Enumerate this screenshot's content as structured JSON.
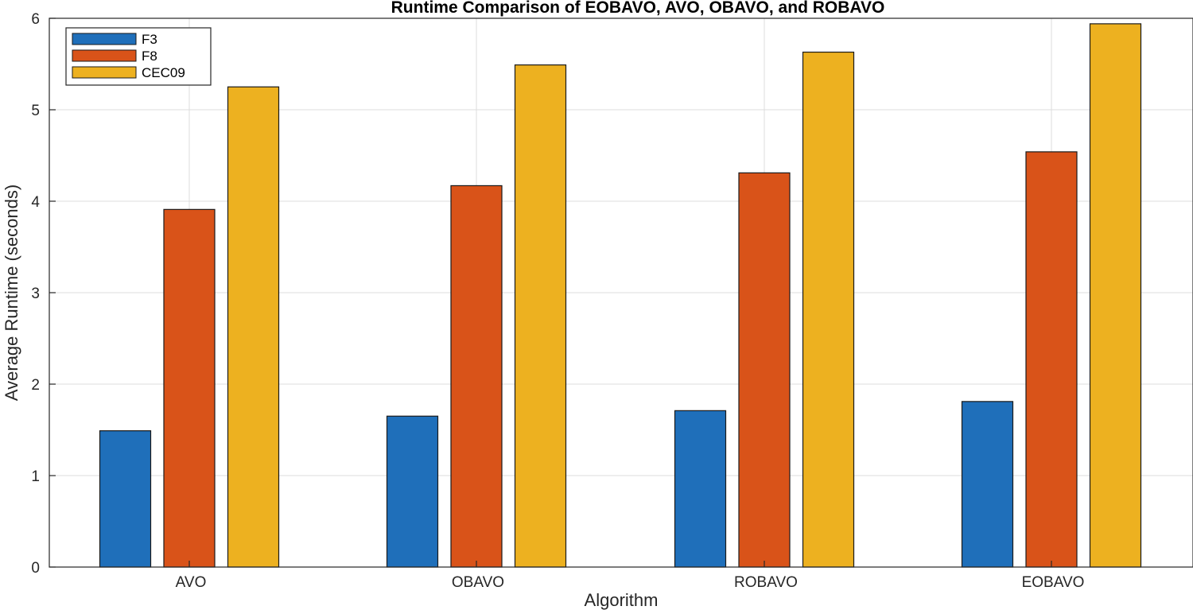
{
  "chart_data": {
    "type": "bar",
    "title": "Runtime Comparison of EOBAVO, AVO, OBAVO, and ROBAVO",
    "xlabel": "Algorithm",
    "ylabel": "Average Runtime (seconds)",
    "ylim": [
      0,
      6
    ],
    "yticks": [
      "0",
      "1",
      "2",
      "3",
      "4",
      "5",
      "6"
    ],
    "grid": true,
    "legend_position": "top-left",
    "categories": [
      "AVO",
      "OBAVO",
      "ROBAVO",
      "EOBAVO"
    ],
    "series": [
      {
        "name": "F3",
        "color": "#1f6fba",
        "values": [
          1.49,
          1.65,
          1.71,
          1.81
        ]
      },
      {
        "name": "F8",
        "color": "#d95319",
        "values": [
          3.91,
          4.17,
          4.31,
          4.54
        ]
      },
      {
        "name": "CEC09",
        "color": "#edb120",
        "values": [
          5.25,
          5.49,
          5.63,
          5.94
        ]
      }
    ]
  }
}
